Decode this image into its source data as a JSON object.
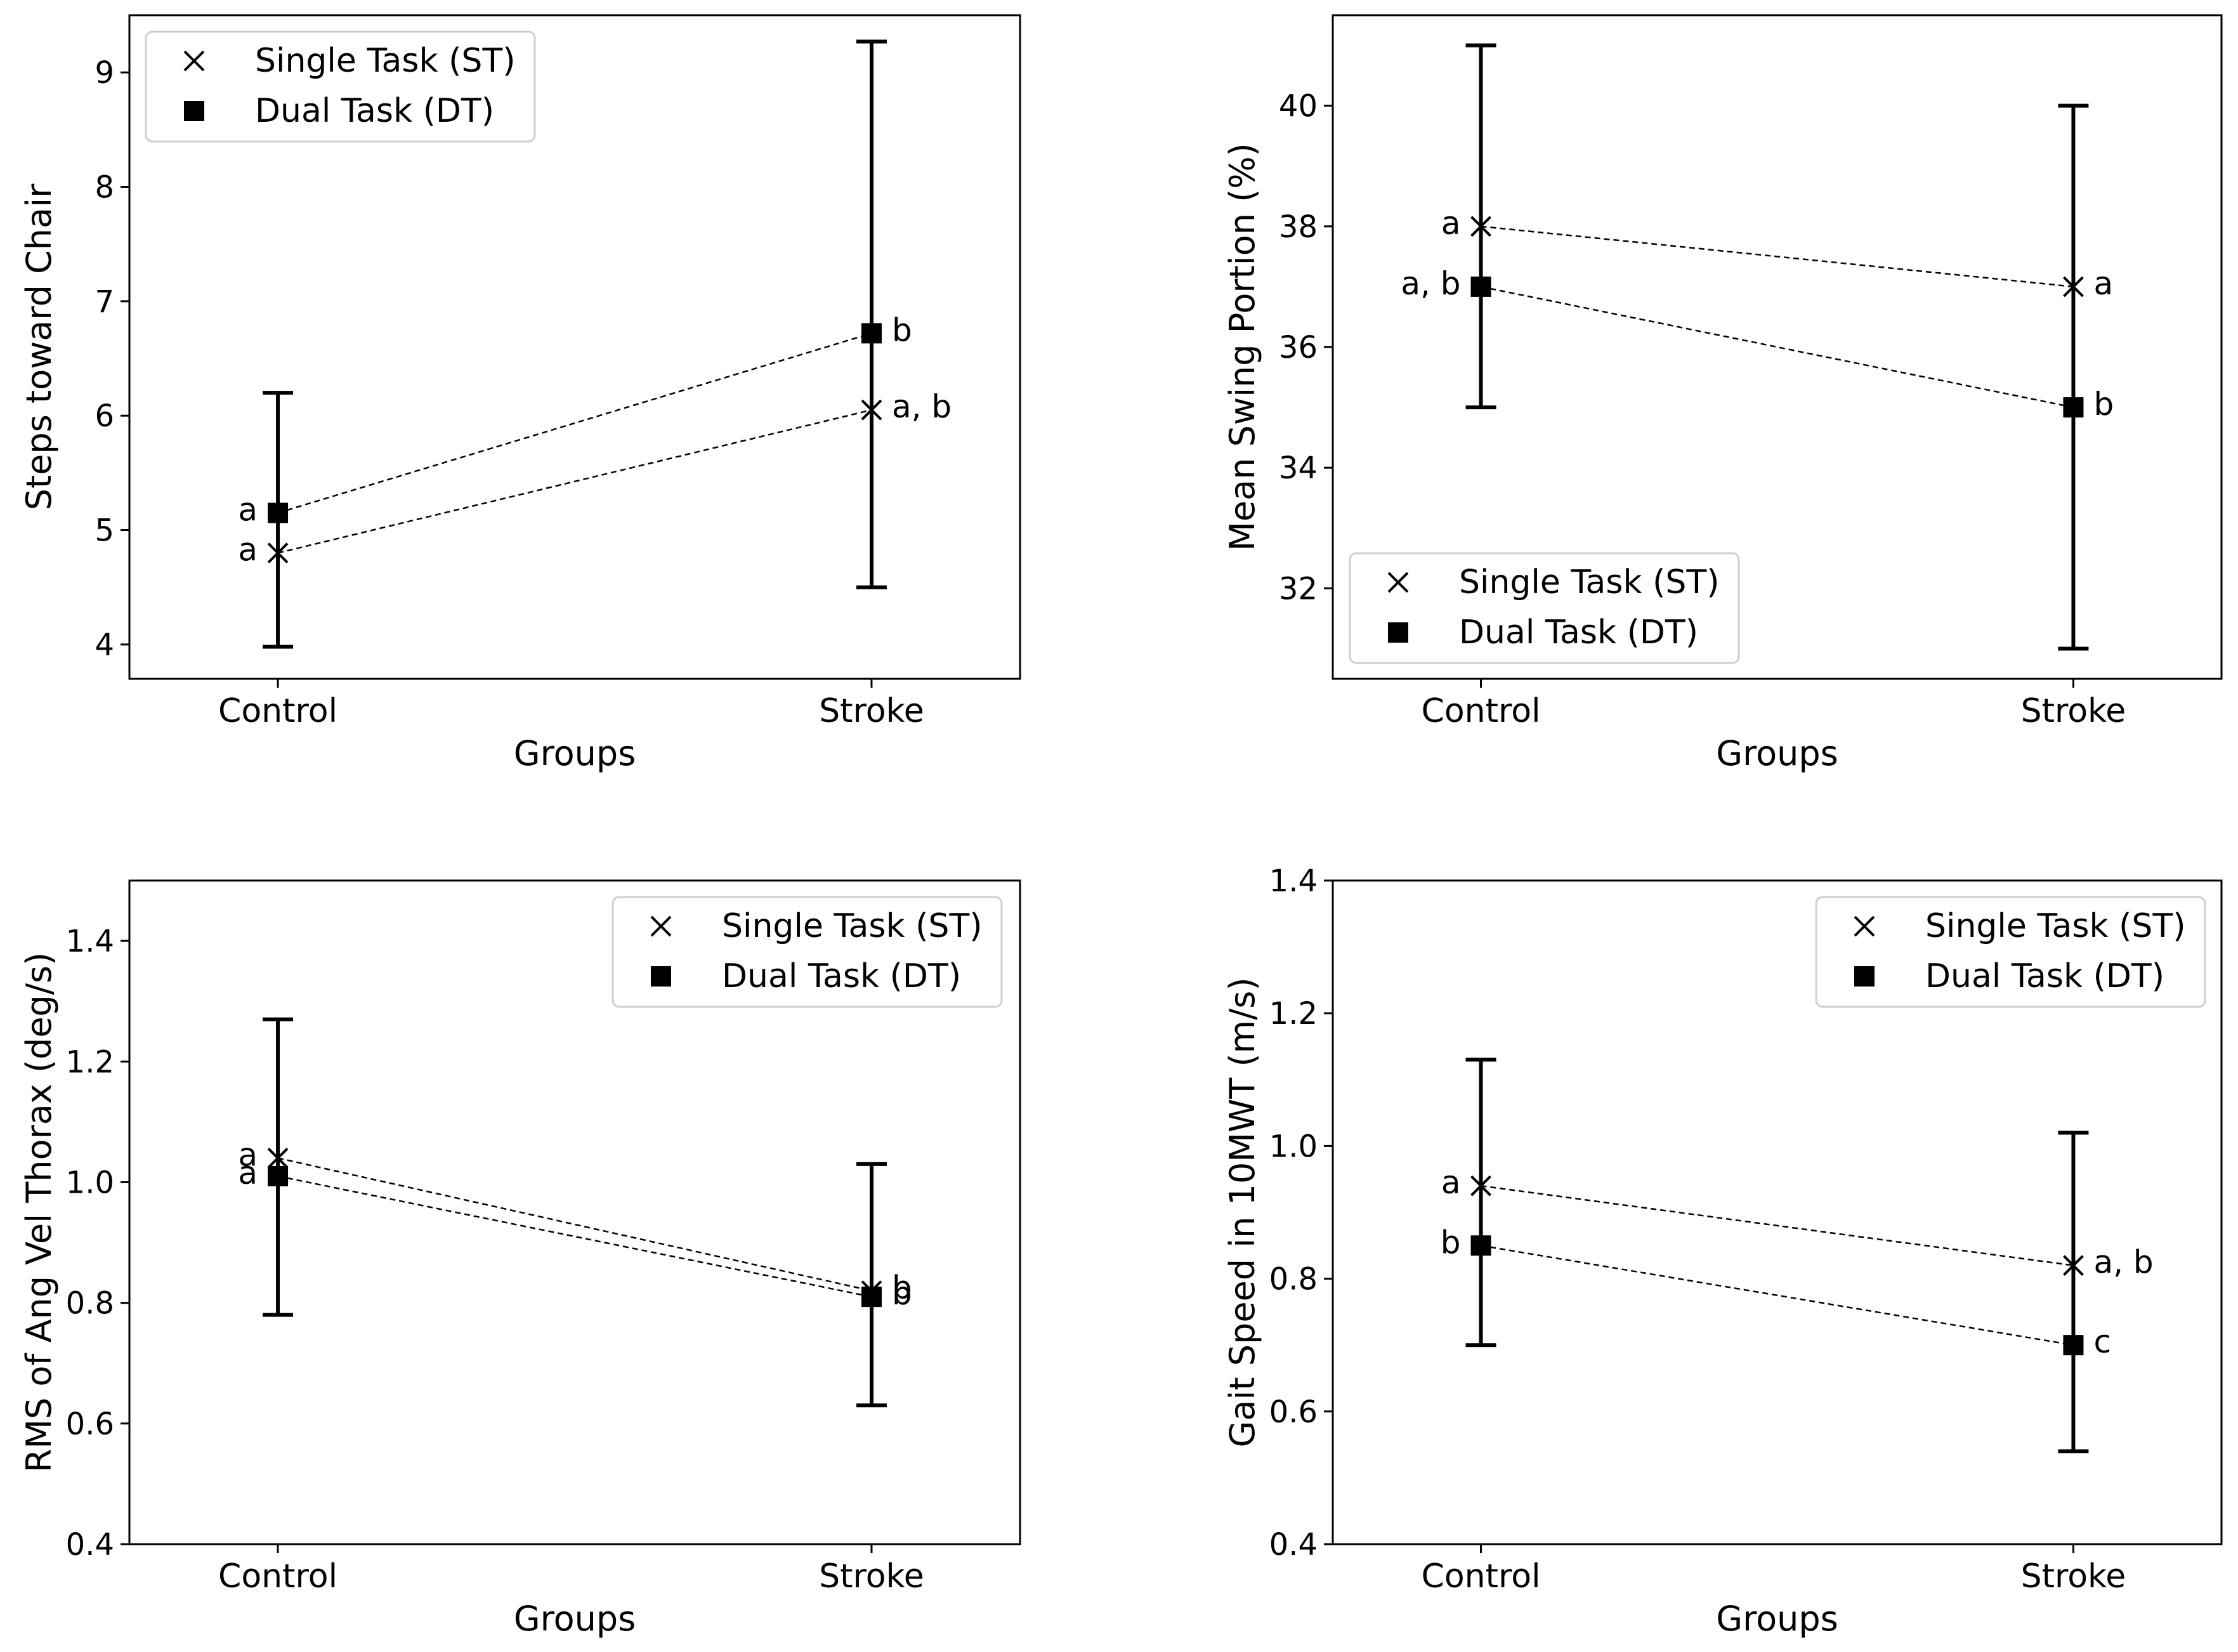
{
  "figure": {
    "legend_labels": [
      "Single Task (ST)",
      "Dual Task (DT)"
    ]
  },
  "chart_data": [
    {
      "type": "scatter",
      "xlabel": "Groups",
      "ylabel": "Steps toward Chair",
      "categories": [
        "Control",
        "Stroke"
      ],
      "ylim": [
        3.7,
        9.5
      ],
      "yticks": [
        4,
        5,
        6,
        7,
        8,
        9
      ],
      "ytick_labels": [
        "4",
        "5",
        "6",
        "7",
        "8",
        "9"
      ],
      "legend": "top-left",
      "series": [
        {
          "name": "Single Task (ST)",
          "marker": "x",
          "values": [
            4.8,
            6.05
          ],
          "labels": [
            "a",
            "a, b"
          ],
          "label_side": [
            "left",
            "right"
          ]
        },
        {
          "name": "Dual Task (DT)",
          "marker": "square",
          "values": [
            5.15,
            6.72
          ],
          "labels": [
            "a",
            "b"
          ],
          "label_side": [
            "left",
            "right"
          ]
        }
      ],
      "error_bars": [
        {
          "category": "Control",
          "low": 3.98,
          "high": 6.2
        },
        {
          "category": "Stroke",
          "low": 4.5,
          "high": 9.27
        }
      ]
    },
    {
      "type": "scatter",
      "xlabel": "Groups",
      "ylabel": "Mean Swing Portion (%)",
      "categories": [
        "Control",
        "Stroke"
      ],
      "ylim": [
        30.5,
        41.5
      ],
      "yticks": [
        32,
        34,
        36,
        38,
        40
      ],
      "ytick_labels": [
        "32",
        "34",
        "36",
        "38",
        "40"
      ],
      "legend": "bottom-left",
      "series": [
        {
          "name": "Single Task (ST)",
          "marker": "x",
          "values": [
            38.0,
            37.0
          ],
          "labels": [
            "a",
            "a"
          ],
          "label_side": [
            "left",
            "right"
          ]
        },
        {
          "name": "Dual Task (DT)",
          "marker": "square",
          "values": [
            37.0,
            35.0
          ],
          "labels": [
            "a, b",
            "b"
          ],
          "label_side": [
            "left",
            "right"
          ]
        }
      ],
      "error_bars": [
        {
          "category": "Control",
          "low": 35.0,
          "high": 41.0
        },
        {
          "category": "Stroke",
          "low": 31.0,
          "high": 40.0
        }
      ]
    },
    {
      "type": "scatter",
      "xlabel": "Groups",
      "ylabel": "RMS of Ang Vel Thorax (deg/s)",
      "categories": [
        "Control",
        "Stroke"
      ],
      "ylim": [
        0.4,
        1.5
      ],
      "yticks": [
        0.4,
        0.6,
        0.8,
        1.0,
        1.2,
        1.4
      ],
      "ytick_labels": [
        "0.4",
        "0.6",
        "0.8",
        "1.0",
        "1.2",
        "1.4"
      ],
      "legend": "top-right",
      "series": [
        {
          "name": "Single Task (ST)",
          "marker": "x",
          "values": [
            1.04,
            0.82
          ],
          "labels": [
            "a",
            "b"
          ],
          "label_side": [
            "left",
            "right"
          ]
        },
        {
          "name": "Dual Task (DT)",
          "marker": "square",
          "values": [
            1.01,
            0.81
          ],
          "labels": [
            "a",
            "b"
          ],
          "label_side": [
            "left",
            "right"
          ]
        }
      ],
      "error_bars": [
        {
          "category": "Control",
          "low": 0.78,
          "high": 1.27
        },
        {
          "category": "Stroke",
          "low": 0.63,
          "high": 1.03
        }
      ]
    },
    {
      "type": "scatter",
      "xlabel": "Groups",
      "ylabel": "Gait Speed in 10MWT (m/s)",
      "categories": [
        "Control",
        "Stroke"
      ],
      "ylim": [
        0.4,
        1.4
      ],
      "yticks": [
        0.4,
        0.6,
        0.8,
        1.0,
        1.2,
        1.4
      ],
      "ytick_labels": [
        "0.4",
        "0.6",
        "0.8",
        "1.0",
        "1.2",
        "1.4"
      ],
      "legend": "top-right",
      "series": [
        {
          "name": "Single Task (ST)",
          "marker": "x",
          "values": [
            0.94,
            0.82
          ],
          "labels": [
            "a",
            "a, b"
          ],
          "label_side": [
            "left",
            "right"
          ]
        },
        {
          "name": "Dual Task (DT)",
          "marker": "square",
          "values": [
            0.85,
            0.7
          ],
          "labels": [
            "b",
            "c"
          ],
          "label_side": [
            "left",
            "right"
          ]
        }
      ],
      "error_bars": [
        {
          "category": "Control",
          "low": 0.7,
          "high": 1.13
        },
        {
          "category": "Stroke",
          "low": 0.54,
          "high": 1.02
        }
      ]
    }
  ]
}
